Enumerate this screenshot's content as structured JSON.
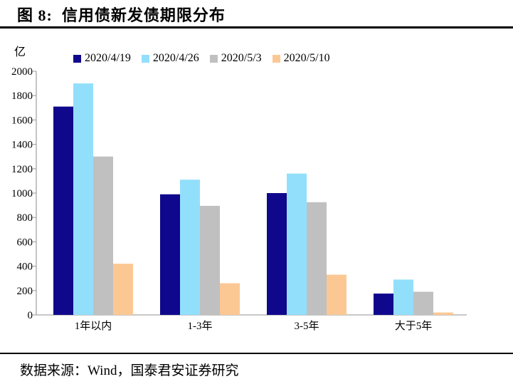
{
  "title": "图 8:  信用债新发债期限分布",
  "footer": {
    "source_label": "数据来源：Wind，国泰君安证券研究"
  },
  "chart_data": {
    "type": "bar",
    "title": "信用债新发债期限分布",
    "unit_label": "亿",
    "categories": [
      "1年以内",
      "1-3年",
      "3-5年",
      "大于5年"
    ],
    "series": [
      {
        "name": "2020/4/19",
        "color": "#10088C",
        "values": [
          1710,
          990,
          1000,
          175
        ]
      },
      {
        "name": "2020/4/26",
        "color": "#92DFFC",
        "values": [
          1900,
          1110,
          1160,
          290
        ]
      },
      {
        "name": "2020/5/3",
        "color": "#C0C0C0",
        "values": [
          1300,
          895,
          925,
          190
        ]
      },
      {
        "name": "2020/5/10",
        "color": "#FBC894",
        "values": [
          420,
          260,
          330,
          20
        ]
      }
    ],
    "ylim": [
      0,
      2000
    ],
    "ytick_step": 200,
    "yticks": [
      0,
      200,
      400,
      600,
      800,
      1000,
      1200,
      1400,
      1600,
      1800,
      2000
    ],
    "grid": false,
    "legend_position": "top",
    "axis_color": "#A6A6A6",
    "xlabel": "",
    "ylabel": ""
  }
}
